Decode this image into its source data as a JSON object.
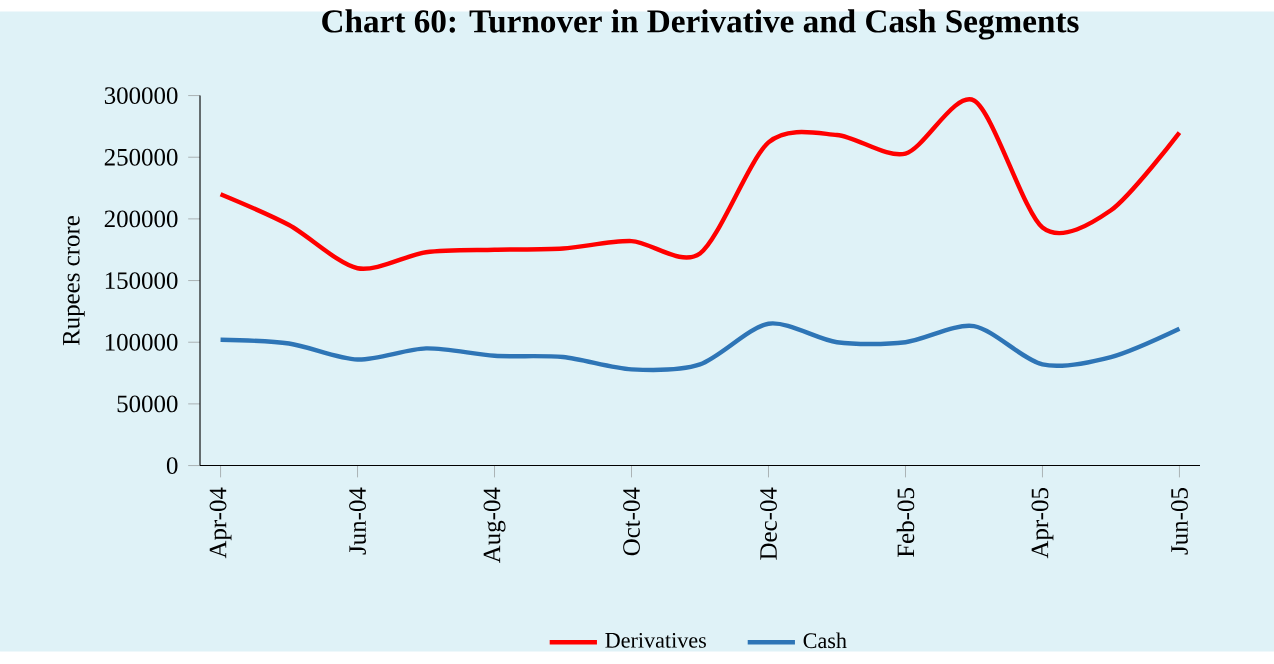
{
  "chart_data": {
    "type": "line",
    "title": "Chart 60: Turnover in Derivative and Cash  Segments",
    "ylabel": "Rupees crore",
    "categories": [
      "Apr-04",
      null,
      "Jun-04",
      null,
      "Aug-04",
      null,
      "Oct-04",
      null,
      "Dec-04",
      null,
      "Feb-05",
      null,
      "Apr-05",
      null,
      "Jun-05"
    ],
    "series": [
      {
        "name": "Derivatives",
        "color": "#ff0000",
        "values": [
          220000,
          195000,
          160000,
          173000,
          175000,
          176000,
          182000,
          172000,
          262000,
          268000,
          253000,
          296000,
          193000,
          207000,
          270000
        ]
      },
      {
        "name": "Cash",
        "color": "#2e75b6",
        "values": [
          102000,
          99000,
          86000,
          95000,
          89000,
          88000,
          78000,
          82000,
          115000,
          100000,
          100000,
          113000,
          82000,
          88000,
          111000
        ]
      }
    ],
    "ylim": [
      0,
      300000
    ],
    "yticks": [
      0,
      50000,
      100000,
      150000,
      200000,
      250000,
      300000
    ],
    "grid": false,
    "legend": "bottom",
    "marker": "none",
    "line_style": "solid"
  }
}
